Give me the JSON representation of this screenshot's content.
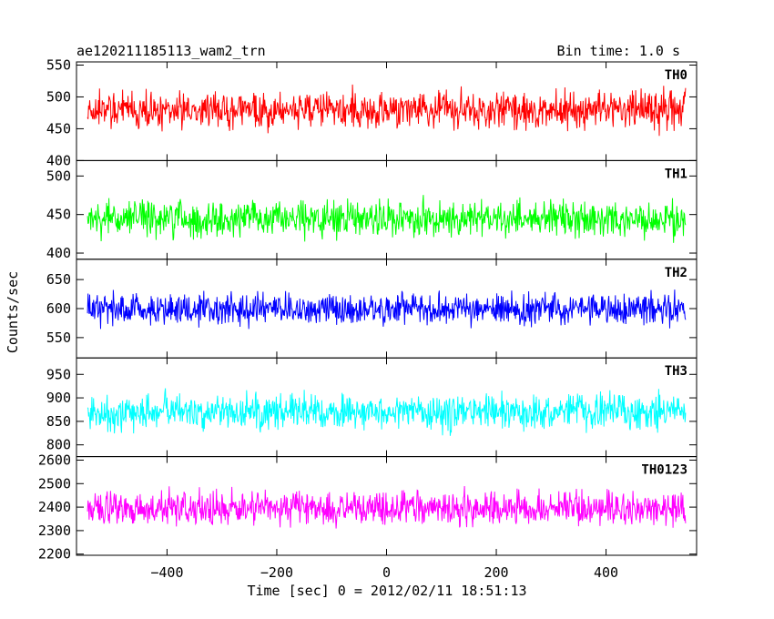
{
  "header": {
    "title": "ae120211185113_wam2_trn",
    "bin_time": "Bin time: 1.0 s"
  },
  "chart_data": {
    "type": "line",
    "title": "ae120211185113_wam2_trn",
    "subtitle": "Bin time: 1.0 s",
    "xlabel": "Time [sec] 0 = 2012/02/11 18:51:13",
    "ylabel": "Counts/sec",
    "xlim": [
      -565,
      565
    ],
    "x_ticks": [
      -400,
      -200,
      0,
      200,
      400
    ],
    "x_ticklabels": [
      "−400",
      "−200",
      "0",
      "200",
      "400"
    ],
    "x_range_data": [
      -545,
      545
    ],
    "bin_time_s": 1.0,
    "grid": false,
    "legend": "none",
    "panels": [
      {
        "label": "TH0",
        "color": "#ff0000",
        "ylim": [
          400,
          555
        ],
        "yticks": [
          400,
          450,
          500,
          550
        ],
        "mean": 480,
        "noise": 42
      },
      {
        "label": "TH1",
        "color": "#00ff00",
        "ylim": [
          392,
          520
        ],
        "yticks": [
          400,
          450,
          500
        ],
        "mean": 445,
        "noise": 34
      },
      {
        "label": "TH2",
        "color": "#0000ff",
        "ylim": [
          515,
          685
        ],
        "yticks": [
          550,
          600,
          650
        ],
        "mean": 600,
        "noise": 40
      },
      {
        "label": "TH3",
        "color": "#00ffff",
        "ylim": [
          775,
          985
        ],
        "yticks": [
          800,
          850,
          900,
          950
        ],
        "mean": 870,
        "noise": 55
      },
      {
        "label": "TH0123",
        "color": "#ff00ff",
        "ylim": [
          2195,
          2615
        ],
        "yticks": [
          2200,
          2300,
          2400,
          2500,
          2600
        ],
        "mean": 2395,
        "noise": 105
      }
    ]
  }
}
